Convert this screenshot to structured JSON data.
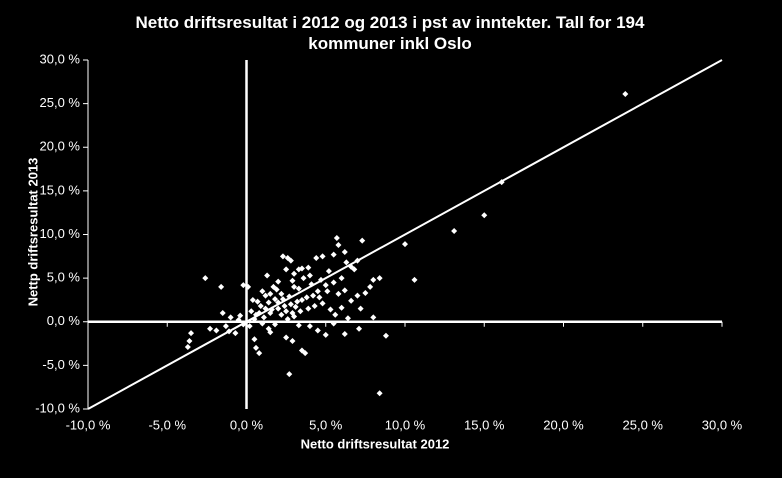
{
  "chart_data": {
    "type": "scatter",
    "title": "Netto driftsresultat i 2012 og 2013 i pst av inntekter. Tall for 194 kommuner inkl Oslo",
    "x_label": "Netto driftsresultat 2012",
    "y_label": "Nettp driftsresultat 2013",
    "color": "#ffffff",
    "xlim": [
      -10,
      30
    ],
    "ylim": [
      -10,
      30
    ],
    "xticks": [
      {
        "value": -10,
        "label": "-10,0 %"
      },
      {
        "value": -5,
        "label": "-5,0 %"
      },
      {
        "value": 0,
        "label": "0,0 %"
      },
      {
        "value": 5,
        "label": "5,0 %"
      },
      {
        "value": 10,
        "label": "10,0 %"
      },
      {
        "value": 15,
        "label": "15,0 %"
      },
      {
        "value": 20,
        "label": "20,0 %"
      },
      {
        "value": 25,
        "label": "25,0 %"
      },
      {
        "value": 30,
        "label": "30,0 %"
      }
    ],
    "yticks": [
      {
        "value": -10,
        "label": "-10,0 %"
      },
      {
        "value": -5,
        "label": "-5,0 %"
      },
      {
        "value": 0,
        "label": "0,0 %"
      },
      {
        "value": 5,
        "label": "5,0 %"
      },
      {
        "value": 10,
        "label": "10,0 %"
      },
      {
        "value": 15,
        "label": "15,0 %"
      },
      {
        "value": 20,
        "label": "20,0 %"
      },
      {
        "value": 25,
        "label": "25,0 %"
      },
      {
        "value": 30,
        "label": "30,0 %"
      }
    ],
    "x": [
      23.9,
      16.1,
      15.0,
      13.1,
      10.0,
      10.6,
      8.4,
      2.7,
      8.8,
      7.3,
      7.8,
      8.0,
      8.4,
      -2.6,
      -1.6,
      -3.5,
      -3.6,
      -3.7,
      -2.3,
      -1.9,
      -1.1,
      -0.7,
      -0.4,
      -0.2,
      0.1,
      0.3,
      0.6,
      0.8,
      0.5,
      0.7,
      1.0,
      1.3,
      1.5,
      2.3,
      2.6,
      2.8,
      2.5,
      3.3,
      3.5,
      4.4,
      4.8,
      5.7,
      5.8,
      6.2,
      5.5,
      6.3,
      6.6,
      6.8,
      7.0,
      4.0,
      3.6,
      2.9,
      2.0,
      1.7,
      3.0,
      3.3,
      4.1,
      5.0,
      5.5,
      6.0,
      4.5,
      4.2,
      5.1,
      5.8,
      6.2,
      3.8,
      3.5,
      2.7,
      2.2,
      1.8,
      1.4,
      1.2,
      0.9,
      0.8,
      1.1,
      1.6,
      2.0,
      2.4,
      2.8,
      3.1,
      3.4,
      3.9,
      4.3,
      4.8,
      5.3,
      5.6,
      6.0,
      6.4,
      6.6,
      7.0,
      7.2,
      7.5,
      8.0,
      2.2,
      2.6,
      3.0,
      3.3,
      1.8,
      1.4,
      1.0,
      0.5,
      0.2,
      -0.2,
      -0.5,
      -1.0,
      -1.3,
      -1.5,
      4.0,
      4.5,
      5.0,
      5.5,
      3.5,
      3.7,
      2.9,
      2.5,
      1.5,
      6.2,
      7.1,
      2.0,
      2.3,
      2.5,
      2.9,
      3.2,
      4.6,
      5.2,
      4.7,
      3.9,
      3.0,
      1.9,
      1.5,
      0.4,
      0.6,
      1.2
    ],
    "values": [
      26.1,
      16.0,
      12.2,
      10.4,
      8.9,
      4.8,
      -8.2,
      -6.0,
      -1.6,
      9.3,
      4.0,
      4.8,
      5.0,
      5.0,
      4.0,
      -1.3,
      -2.2,
      -2.9,
      -0.8,
      -1.0,
      -1.1,
      -1.3,
      0.7,
      4.2,
      4.0,
      1.2,
      -3.0,
      -3.6,
      -2.0,
      2.3,
      3.5,
      5.3,
      1.0,
      7.5,
      7.3,
      7.0,
      6.0,
      6.0,
      6.1,
      7.3,
      7.5,
      9.6,
      8.8,
      8.0,
      7.7,
      6.8,
      6.3,
      6.0,
      7.0,
      5.3,
      5.0,
      4.7,
      4.6,
      4.0,
      4.0,
      3.8,
      4.3,
      4.2,
      4.5,
      5.0,
      3.5,
      3.0,
      3.5,
      3.2,
      3.6,
      2.8,
      2.5,
      2.9,
      3.2,
      2.6,
      2.2,
      3.0,
      1.8,
      1.0,
      0.5,
      1.4,
      1.5,
      1.8,
      2.0,
      1.7,
      1.2,
      1.5,
      1.8,
      2.1,
      1.4,
      0.8,
      1.6,
      0.4,
      2.4,
      3.0,
      1.5,
      3.3,
      0.5,
      0.8,
      0.3,
      0.6,
      -0.4,
      -0.3,
      -0.8,
      -0.2,
      0.3,
      -0.5,
      -0.3,
      0.2,
      0.5,
      -0.5,
      1.0,
      -0.5,
      -1.0,
      -1.5,
      -0.2,
      -3.3,
      -3.6,
      -2.2,
      -1.8,
      -1.2,
      -1.4,
      -0.8,
      2.2,
      2.6,
      1.2,
      1.0,
      2.3,
      2.8,
      5.8,
      4.8,
      6.2,
      5.5,
      3.7,
      3.2,
      2.5,
      0.8,
      1.5
    ]
  }
}
